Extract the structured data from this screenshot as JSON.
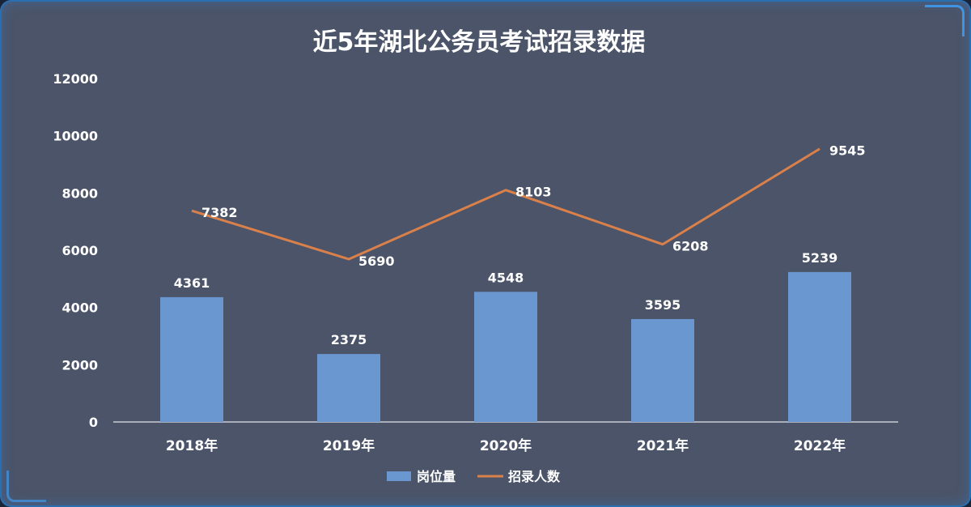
{
  "chart_data": {
    "type": "bar",
    "title": "近5年湖北公务员考试招录数据",
    "categories": [
      "2018年",
      "2019年",
      "2020年",
      "2021年",
      "2022年"
    ],
    "ylim": [
      0,
      12000
    ],
    "yticks": [
      "0",
      "2000",
      "4000",
      "6000",
      "8000",
      "10000",
      "12000"
    ],
    "grid": false,
    "legend_position": "bottom",
    "series": [
      {
        "name": "岗位量",
        "type": "bar",
        "color": "#6b97d0",
        "values": [
          4361,
          2375,
          4548,
          3595,
          5239
        ],
        "labels": [
          "4361",
          "2375",
          "4548",
          "3595",
          "5239"
        ]
      },
      {
        "name": "招录人数",
        "type": "line",
        "color": "#d9804b",
        "values": [
          7382,
          5690,
          8103,
          6208,
          9545
        ],
        "labels": [
          "7382",
          "5690",
          "8103",
          "6208",
          "9545"
        ]
      }
    ]
  }
}
